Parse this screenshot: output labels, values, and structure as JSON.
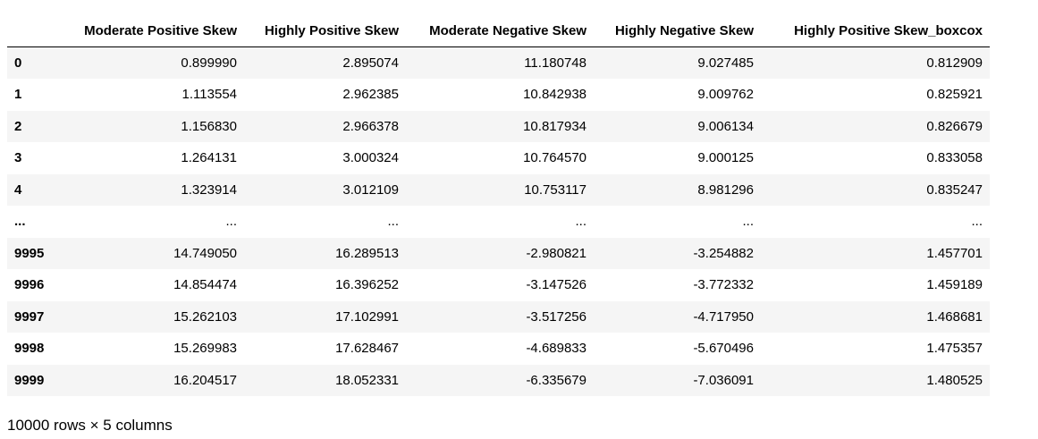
{
  "table": {
    "index_header": "",
    "columns": [
      "Moderate Positive Skew",
      "Highly Positive Skew",
      "Moderate Negative Skew",
      "Highly Negative Skew",
      "Highly Positive Skew_boxcox"
    ],
    "rows": [
      {
        "index": "0",
        "cells": [
          "0.899990",
          "2.895074",
          "11.180748",
          "9.027485",
          "0.812909"
        ]
      },
      {
        "index": "1",
        "cells": [
          "1.113554",
          "2.962385",
          "10.842938",
          "9.009762",
          "0.825921"
        ]
      },
      {
        "index": "2",
        "cells": [
          "1.156830",
          "2.966378",
          "10.817934",
          "9.006134",
          "0.826679"
        ]
      },
      {
        "index": "3",
        "cells": [
          "1.264131",
          "3.000324",
          "10.764570",
          "9.000125",
          "0.833058"
        ]
      },
      {
        "index": "4",
        "cells": [
          "1.323914",
          "3.012109",
          "10.753117",
          "8.981296",
          "0.835247"
        ]
      },
      {
        "index": "...",
        "cells": [
          "...",
          "...",
          "...",
          "...",
          "..."
        ]
      },
      {
        "index": "9995",
        "cells": [
          "14.749050",
          "16.289513",
          "-2.980821",
          "-3.254882",
          "1.457701"
        ]
      },
      {
        "index": "9996",
        "cells": [
          "14.854474",
          "16.396252",
          "-3.147526",
          "-3.772332",
          "1.459189"
        ]
      },
      {
        "index": "9997",
        "cells": [
          "15.262103",
          "17.102991",
          "-3.517256",
          "-4.717950",
          "1.468681"
        ]
      },
      {
        "index": "9998",
        "cells": [
          "15.269983",
          "17.628467",
          "-4.689833",
          "-5.670496",
          "1.475357"
        ]
      },
      {
        "index": "9999",
        "cells": [
          "16.204517",
          "18.052331",
          "-6.335679",
          "-7.036091",
          "1.480525"
        ]
      }
    ]
  },
  "shape_note": "10000 rows × 5 columns"
}
